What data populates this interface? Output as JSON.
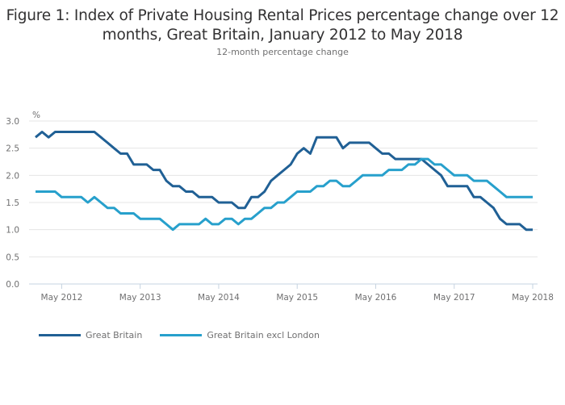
{
  "chart_data": {
    "type": "line",
    "title": "Figure 1: Index of Private Housing Rental Prices percentage change over 12 months, Great Britain, January 2012 to May 2018",
    "title_lines": [
      "Figure 1: Index of Private Housing Rental Prices percentage change over 12",
      "months, Great Britain, January 2012 to May 2018"
    ],
    "subtitle": "12-month percentage change",
    "ylabel": "%",
    "xlabel": "",
    "ylim": [
      0,
      3.0
    ],
    "yticks": [
      "0.0",
      "0.5",
      "1.0",
      "1.5",
      "2.0",
      "2.5",
      "3.0"
    ],
    "ytick_values": [
      0,
      0.5,
      1.0,
      1.5,
      2.0,
      2.5,
      3.0
    ],
    "x_start": "Jan 2012",
    "x_end": "May 2018",
    "x_count": 77,
    "xticks": [
      {
        "label": "May 2012",
        "index": 4
      },
      {
        "label": "May 2013",
        "index": 16
      },
      {
        "label": "May 2014",
        "index": 28
      },
      {
        "label": "May 2015",
        "index": 40
      },
      {
        "label": "May 2016",
        "index": 52
      },
      {
        "label": "May 2017",
        "index": 64
      },
      {
        "label": "May 2018",
        "index": 76
      }
    ],
    "grid": true,
    "legend_position": "bottom-left",
    "series": [
      {
        "name": "Great Britain",
        "color": "#206095",
        "values": [
          2.7,
          2.8,
          2.7,
          2.8,
          2.8,
          2.8,
          2.8,
          2.8,
          2.8,
          2.8,
          2.7,
          2.6,
          2.5,
          2.4,
          2.4,
          2.2,
          2.2,
          2.2,
          2.1,
          2.1,
          1.9,
          1.8,
          1.8,
          1.7,
          1.7,
          1.6,
          1.6,
          1.6,
          1.5,
          1.5,
          1.5,
          1.4,
          1.4,
          1.6,
          1.6,
          1.7,
          1.9,
          2.0,
          2.1,
          2.2,
          2.4,
          2.5,
          2.4,
          2.7,
          2.7,
          2.7,
          2.7,
          2.5,
          2.6,
          2.6,
          2.6,
          2.6,
          2.5,
          2.4,
          2.4,
          2.3,
          2.3,
          2.3,
          2.3,
          2.3,
          2.2,
          2.1,
          2.0,
          1.8,
          1.8,
          1.8,
          1.8,
          1.6,
          1.6,
          1.5,
          1.4,
          1.2,
          1.1,
          1.1,
          1.1,
          1.0,
          1.0
        ]
      },
      {
        "name": "Great Britain excl London",
        "color": "#27a0cc",
        "values": [
          1.7,
          1.7,
          1.7,
          1.7,
          1.6,
          1.6,
          1.6,
          1.6,
          1.5,
          1.6,
          1.5,
          1.4,
          1.4,
          1.3,
          1.3,
          1.3,
          1.2,
          1.2,
          1.2,
          1.2,
          1.1,
          1.0,
          1.1,
          1.1,
          1.1,
          1.1,
          1.2,
          1.1,
          1.1,
          1.2,
          1.2,
          1.1,
          1.2,
          1.2,
          1.3,
          1.4,
          1.4,
          1.5,
          1.5,
          1.6,
          1.7,
          1.7,
          1.7,
          1.8,
          1.8,
          1.9,
          1.9,
          1.8,
          1.8,
          1.9,
          2.0,
          2.0,
          2.0,
          2.0,
          2.1,
          2.1,
          2.1,
          2.2,
          2.2,
          2.3,
          2.3,
          2.2,
          2.2,
          2.1,
          2.0,
          2.0,
          2.0,
          1.9,
          1.9,
          1.9,
          1.8,
          1.7,
          1.6,
          1.6,
          1.6,
          1.6,
          1.6
        ]
      }
    ]
  }
}
